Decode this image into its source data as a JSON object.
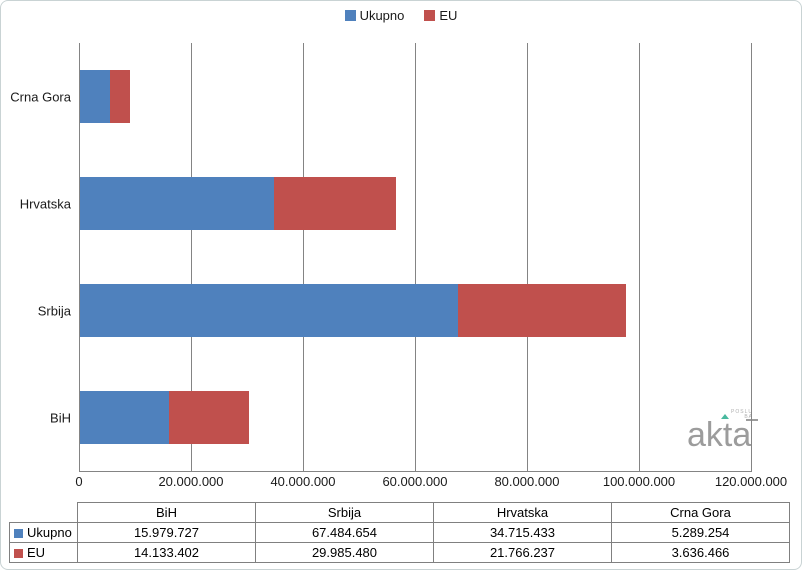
{
  "colors": {
    "ukupno_blue": "#4F81BD",
    "eu_red": "#C0504D",
    "gridline": "#848484",
    "table_border": "#808080",
    "logo_gray": "#9c9c9c",
    "logo_teal": "#49b99f"
  },
  "legend": {
    "items": [
      {
        "label": "Ukupno",
        "color": "#4F81BD"
      },
      {
        "label": "EU",
        "color": "#C0504D"
      }
    ]
  },
  "chart_data": {
    "type": "bar",
    "orientation": "horizontal",
    "stacked": true,
    "title": "",
    "xlabel": "",
    "ylabel": "",
    "xlim": [
      0,
      120000000
    ],
    "x_tick_labels": [
      "0",
      "20.000.000",
      "40.000.000",
      "60.000.000",
      "80.000.000",
      "100.000.000",
      "120.000.000"
    ],
    "x_tick_values": [
      0,
      20000000,
      40000000,
      60000000,
      80000000,
      100000000,
      120000000
    ],
    "grid": "vertical",
    "legend_position": "top-center",
    "categories_top_to_bottom": [
      "Crna Gora",
      "Hrvatska",
      "Srbija",
      "BiH"
    ],
    "series": [
      {
        "name": "Ukupno",
        "color": "#4F81BD",
        "values_top_to_bottom": [
          5289254,
          34715433,
          67484654,
          15979727
        ]
      },
      {
        "name": "EU",
        "color": "#C0504D",
        "values_top_to_bottom": [
          3636466,
          21766237,
          29985480,
          14133402
        ]
      }
    ]
  },
  "table": {
    "columns": [
      "BiH",
      "Srbija",
      "Hrvatska",
      "Crna Gora"
    ],
    "rows": [
      {
        "label": "Ukupno",
        "color": "#4F81BD",
        "values": [
          "15.979.727",
          "67.484.654",
          "34.715.433",
          "5.289.254"
        ]
      },
      {
        "label": "EU",
        "color": "#C0504D",
        "values": [
          "14.133.402",
          "29.985.480",
          "21.766.237",
          "3.636.466"
        ]
      }
    ]
  },
  "logo": {
    "text": "akta",
    "tagline_line1": "POSLU",
    "tagline_line2": "BA"
  }
}
